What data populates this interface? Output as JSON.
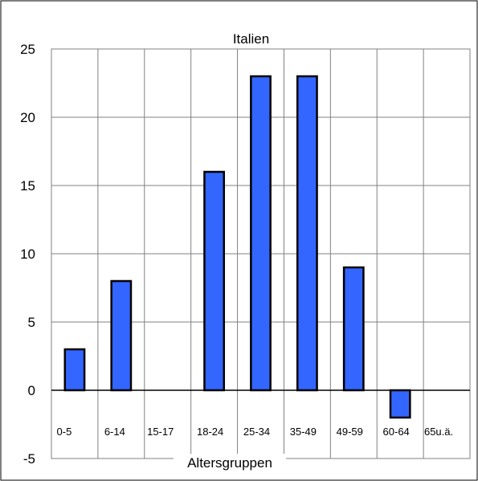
{
  "chart_data": {
    "type": "bar",
    "title": "Italien",
    "xlabel": "Altersgruppen",
    "ylabel": "",
    "categories": [
      "0-5",
      "6-14",
      "15-17",
      "18-24",
      "25-34",
      "35-49",
      "49-59",
      "60-64",
      "65u.ä."
    ],
    "values": [
      3,
      8,
      0,
      16,
      23,
      23,
      9,
      -2,
      0
    ],
    "ylim": [
      -5,
      25
    ],
    "yticks": [
      -5,
      0,
      5,
      10,
      15,
      20,
      25
    ],
    "grid": true,
    "legend": "none",
    "colors": {
      "bar_fill": "#3366ff",
      "bar_stroke": "#000000",
      "grid": "#808080",
      "frame": "#808080"
    }
  }
}
